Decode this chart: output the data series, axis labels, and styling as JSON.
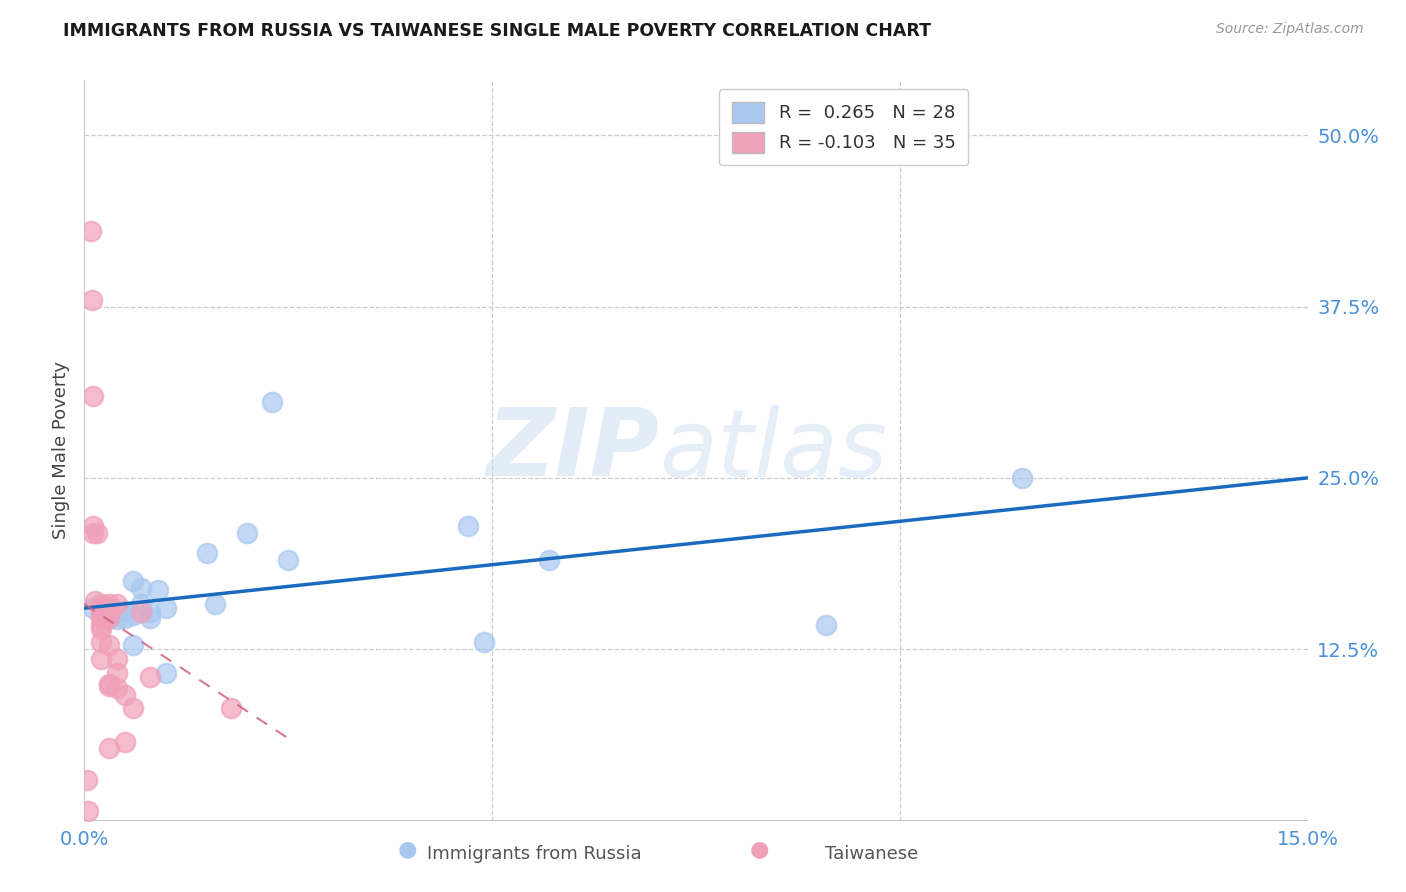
{
  "title": "IMMIGRANTS FROM RUSSIA VS TAIWANESE SINGLE MALE POVERTY CORRELATION CHART",
  "source": "Source: ZipAtlas.com",
  "ylabel": "Single Male Poverty",
  "xlim": [
    0.0,
    0.15
  ],
  "ylim": [
    0.0,
    0.54
  ],
  "yticks_right": [
    0.125,
    0.25,
    0.375,
    0.5
  ],
  "ytick_right_labels": [
    "12.5%",
    "25.0%",
    "37.5%",
    "50.0%"
  ],
  "legend_R1": " 0.265",
  "legend_N1": "28",
  "legend_R2": "-0.103",
  "legend_N2": "35",
  "blue_color": "#a8c8f0",
  "pink_color": "#f0a0b8",
  "trend_blue": "#1a6bbf",
  "trend_pink": "#d06080",
  "russia_x": [
    0.001,
    0.002,
    0.003,
    0.003,
    0.004,
    0.004,
    0.005,
    0.005,
    0.006,
    0.006,
    0.006,
    0.007,
    0.007,
    0.008,
    0.008,
    0.009,
    0.01,
    0.01,
    0.015,
    0.016,
    0.02,
    0.023,
    0.025,
    0.047,
    0.049,
    0.057,
    0.091,
    0.115
  ],
  "russia_y": [
    0.155,
    0.15,
    0.155,
    0.148,
    0.152,
    0.147,
    0.148,
    0.153,
    0.128,
    0.15,
    0.175,
    0.158,
    0.17,
    0.152,
    0.148,
    0.168,
    0.155,
    0.108,
    0.195,
    0.158,
    0.21,
    0.305,
    0.19,
    0.215,
    0.13,
    0.19,
    0.143,
    0.25
  ],
  "taiwan_x": [
    0.0003,
    0.0004,
    0.0008,
    0.0009,
    0.001,
    0.001,
    0.001,
    0.0013,
    0.0015,
    0.002,
    0.002,
    0.002,
    0.002,
    0.002,
    0.002,
    0.002,
    0.002,
    0.003,
    0.003,
    0.003,
    0.003,
    0.003,
    0.003,
    0.003,
    0.003,
    0.004,
    0.004,
    0.004,
    0.004,
    0.005,
    0.005,
    0.006,
    0.007,
    0.008,
    0.018
  ],
  "taiwan_y": [
    0.03,
    0.007,
    0.43,
    0.38,
    0.31,
    0.215,
    0.21,
    0.16,
    0.21,
    0.158,
    0.155,
    0.152,
    0.148,
    0.143,
    0.14,
    0.13,
    0.118,
    0.158,
    0.155,
    0.152,
    0.148,
    0.128,
    0.1,
    0.098,
    0.053,
    0.158,
    0.118,
    0.108,
    0.097,
    0.092,
    0.057,
    0.082,
    0.152,
    0.105,
    0.082
  ],
  "blue_trend_x": [
    0.0,
    0.15
  ],
  "blue_trend_y": [
    0.155,
    0.25
  ],
  "pink_trend_x": [
    0.0,
    0.025
  ],
  "pink_trend_y": [
    0.158,
    0.06
  ]
}
